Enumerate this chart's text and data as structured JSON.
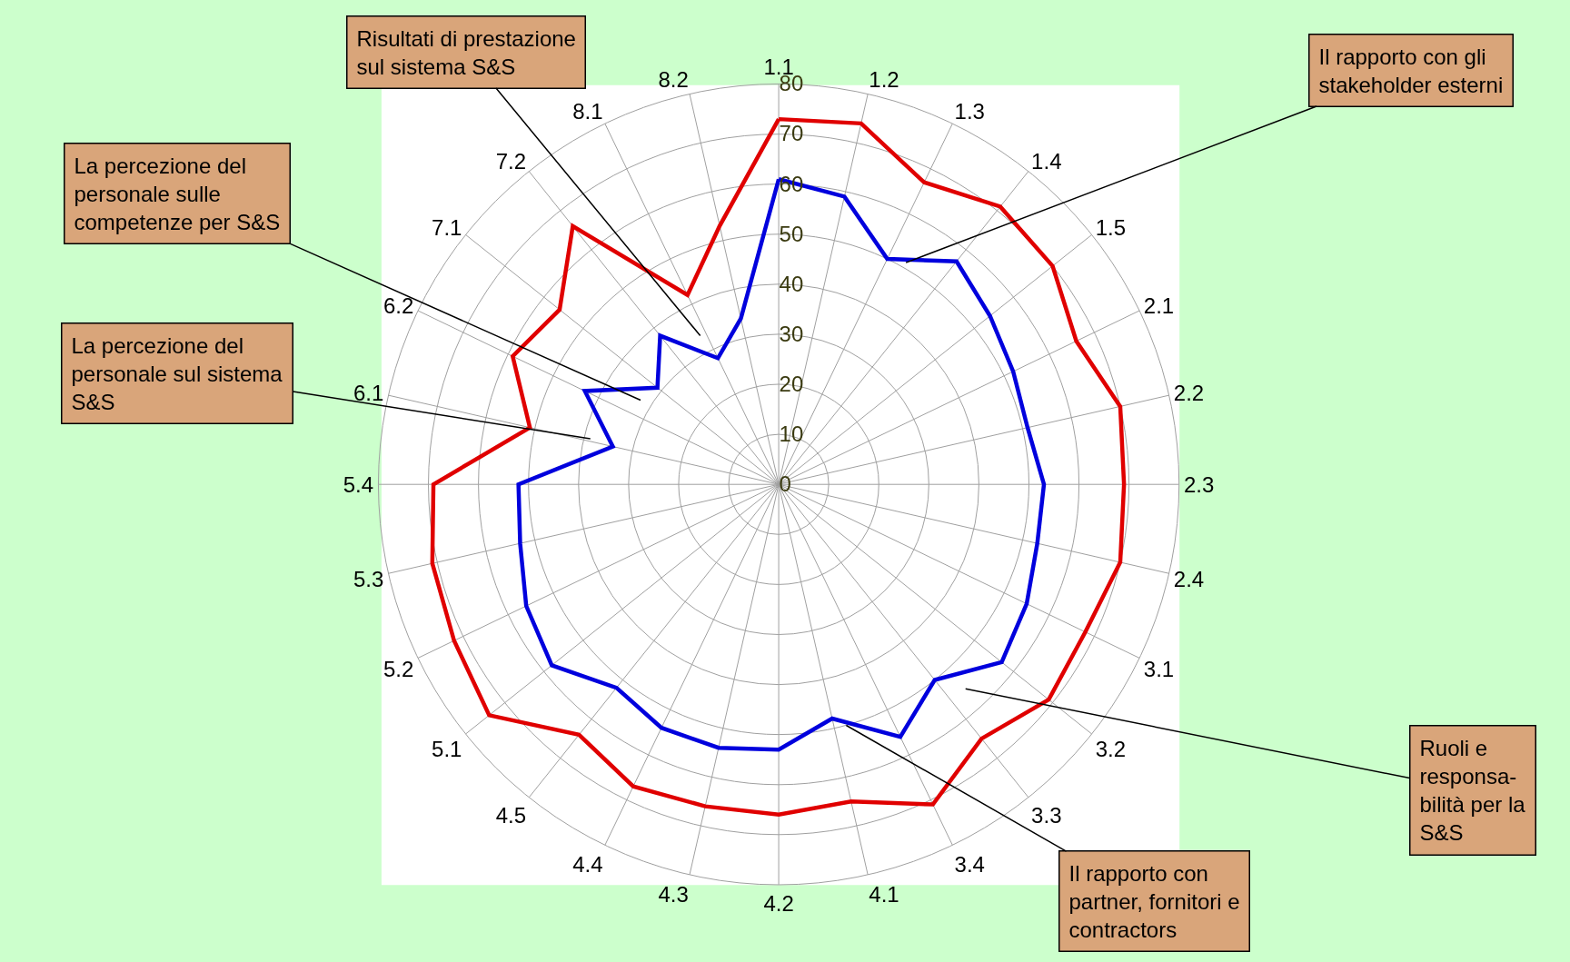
{
  "chart_data": {
    "type": "radar",
    "categories": [
      "1.1",
      "1.2",
      "1.3",
      "1.4",
      "1.5",
      "2.1",
      "2.2",
      "2.3",
      "2.4",
      "3.1",
      "3.2",
      "3.3",
      "3.4",
      "4.1",
      "4.2",
      "4.3",
      "4.4",
      "4.5",
      "5.1",
      "5.2",
      "5.3",
      "5.4",
      "6.1",
      "6.2",
      "7.1",
      "7.2",
      "8.1",
      "8.2"
    ],
    "series": [
      {
        "color": "#e00000",
        "values": [
          73,
          74,
          67,
          71,
          70,
          66,
          70,
          69,
          70,
          68,
          69,
          65,
          71,
          65,
          66,
          66,
          67,
          64,
          74,
          72,
          71,
          69,
          51,
          59,
          56,
          66,
          42,
          53
        ]
      },
      {
        "color": "#0000dd",
        "values": [
          61,
          59,
          50,
          57,
          54,
          52,
          51,
          53,
          53,
          55,
          57,
          50,
          56,
          48,
          53,
          54,
          54,
          52,
          58,
          56,
          53,
          52,
          34,
          43,
          31,
          38,
          28,
          34
        ]
      }
    ],
    "ylim": [
      0,
      80
    ],
    "yticks": [
      0,
      10,
      20,
      30,
      40,
      50,
      60,
      70,
      80
    ],
    "grid": true,
    "marker": "none",
    "line_style": "solid",
    "annotations": [
      "Risultati di prestazione\nsul sistema S&S",
      "La percezione del\npersonale sulle\ncompetenze per S&S",
      "La percezione del\npersonale sul sistema\nS&S",
      "Il rapporto con gli\nstakeholder esterni",
      "Ruoli e\nresponsa-\nbilità per la\nS&S",
      "Il rapporto con\npartner, fornitori e\ncontractors"
    ]
  }
}
